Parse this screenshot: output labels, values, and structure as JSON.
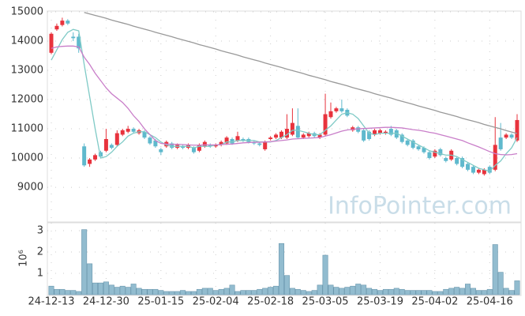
{
  "chart_data": [
    {
      "type": "candlestick",
      "categories": [
        "24-12-13",
        null,
        null,
        null,
        null,
        null,
        null,
        null,
        null,
        null,
        "24-12-30",
        null,
        null,
        null,
        null,
        null,
        null,
        null,
        null,
        null,
        "25-01-15",
        null,
        null,
        null,
        null,
        null,
        null,
        null,
        null,
        null,
        "25-02-04",
        null,
        null,
        null,
        null,
        null,
        null,
        null,
        null,
        null,
        "25-02-18",
        null,
        null,
        null,
        null,
        null,
        null,
        null,
        null,
        null,
        "25-03-05",
        null,
        null,
        null,
        null,
        null,
        null,
        null,
        null,
        null,
        "25-03-19",
        null,
        null,
        null,
        null,
        null,
        null,
        null,
        null,
        null,
        "25-04-02",
        null,
        null,
        null,
        null,
        null,
        null,
        null,
        null,
        null,
        "25-04-16",
        null,
        null,
        null,
        null,
        null
      ],
      "open": [
        13600,
        14400,
        14550,
        14700,
        14150,
        14150,
        10400,
        9800,
        9950,
        10200,
        10250,
        10450,
        10450,
        10800,
        10900,
        11000,
        10850,
        10900,
        10700,
        10600,
        10300,
        10400,
        10500,
        10350,
        10400,
        10350,
        10350,
        10250,
        10400,
        10450,
        10400,
        10450,
        10500,
        10650,
        10600,
        10650,
        10650,
        10550,
        10500,
        10300,
        10650,
        10700,
        10700,
        10700,
        10800,
        11100,
        10700,
        10750,
        10850,
        10700,
        10800,
        11400,
        11600,
        11700,
        11650,
        10950,
        11050,
        10950,
        10900,
        10800,
        10850,
        10850,
        11000,
        10950,
        10800,
        10600,
        10600,
        10400,
        10350,
        10200,
        10050,
        10300,
        10000,
        9950,
        10000,
        10000,
        9800,
        9700,
        9500,
        9450,
        9700,
        9600,
        10700,
        10700,
        10800,
        10600
      ],
      "high": [
        14300,
        14600,
        14800,
        14750,
        14300,
        14250,
        10500,
        10000,
        10150,
        10250,
        11000,
        10500,
        10950,
        11000,
        11100,
        11050,
        11000,
        10950,
        10750,
        10650,
        10350,
        10600,
        10550,
        10500,
        10450,
        10500,
        10400,
        10500,
        10600,
        10500,
        10500,
        10600,
        10750,
        10700,
        10900,
        10700,
        10700,
        10600,
        10550,
        10600,
        10750,
        10850,
        10950,
        11500,
        11700,
        11700,
        10850,
        10900,
        10900,
        10850,
        12200,
        11900,
        11750,
        12000,
        11700,
        11100,
        11100,
        11000,
        10950,
        11000,
        11000,
        10950,
        11100,
        11000,
        10850,
        10650,
        10650,
        10450,
        10400,
        10250,
        10300,
        10350,
        10050,
        10300,
        10050,
        10050,
        9850,
        9750,
        9650,
        9650,
        9750,
        11400,
        11200,
        10850,
        10850,
        11500
      ],
      "low": [
        13550,
        14350,
        14500,
        14550,
        14000,
        13600,
        9700,
        9700,
        9900,
        10000,
        10200,
        10300,
        10400,
        10750,
        10850,
        10850,
        10800,
        10650,
        10450,
        10350,
        10100,
        10350,
        10300,
        10300,
        10300,
        10300,
        10150,
        10200,
        10350,
        10350,
        10350,
        10400,
        10450,
        10450,
        10550,
        10550,
        10500,
        10450,
        10400,
        10250,
        10600,
        10650,
        10650,
        10650,
        10750,
        10650,
        10650,
        10700,
        10700,
        10650,
        10750,
        11350,
        11550,
        11550,
        11400,
        10900,
        10850,
        10550,
        10600,
        10750,
        10800,
        10800,
        10750,
        10650,
        10500,
        10400,
        10300,
        10250,
        10150,
        9950,
        10000,
        10050,
        9850,
        9900,
        9750,
        9650,
        9550,
        9450,
        9450,
        9400,
        9450,
        9550,
        10250,
        10650,
        10650,
        10550
      ],
      "close": [
        14250,
        14520,
        14700,
        14600,
        14100,
        13750,
        9750,
        9950,
        10100,
        10050,
        10650,
        10350,
        10850,
        10950,
        11000,
        10900,
        10950,
        10700,
        10500,
        10400,
        10200,
        10550,
        10350,
        10450,
        10350,
        10450,
        10200,
        10450,
        10550,
        10400,
        10450,
        10550,
        10700,
        10500,
        10750,
        10600,
        10550,
        10500,
        10450,
        10550,
        10700,
        10800,
        10900,
        11000,
        11200,
        10700,
        10800,
        10850,
        10750,
        10800,
        11500,
        11600,
        11700,
        11600,
        11450,
        11050,
        10900,
        10600,
        10650,
        10950,
        10950,
        10900,
        10800,
        10700,
        10550,
        10450,
        10350,
        10300,
        10200,
        10000,
        10250,
        10100,
        9900,
        10250,
        9800,
        9700,
        9600,
        9500,
        9600,
        9600,
        9500,
        10450,
        10300,
        10800,
        10700,
        11300
      ],
      "up_color": "#e8333d",
      "down_color": "#5fb9cd",
      "series": [
        {
          "color": "#7fcac6",
          "values": [
            13350,
            13700,
            14050,
            14300,
            14400,
            14350,
            13200,
            12100,
            11000,
            10000,
            10050,
            10200,
            10400,
            10550,
            10750,
            10850,
            10900,
            10900,
            10800,
            10700,
            10550,
            10450,
            10400,
            10400,
            10400,
            10400,
            10350,
            10400,
            10400,
            10400,
            10450,
            10450,
            10550,
            10550,
            10600,
            10600,
            10600,
            10600,
            10550,
            10550,
            10550,
            10600,
            10700,
            10800,
            10950,
            10950,
            10900,
            10850,
            10800,
            10800,
            10950,
            11100,
            11300,
            11500,
            11550,
            11500,
            11350,
            11100,
            10850,
            10800,
            10850,
            10850,
            10850,
            10850,
            10750,
            10650,
            10550,
            10450,
            10350,
            10250,
            10200,
            10150,
            10100,
            10100,
            10050,
            9950,
            9850,
            9750,
            9650,
            9600,
            9550,
            9750,
            9900,
            10150,
            10350,
            10700
          ]
        },
        {
          "color": "#c97ec9",
          "values": [
            13750,
            13800,
            13820,
            13830,
            13830,
            13800,
            13450,
            13200,
            12900,
            12650,
            12400,
            12200,
            12050,
            11900,
            11700,
            11450,
            11250,
            11000,
            10800,
            10600,
            10500,
            10480,
            10470,
            10470,
            10460,
            10450,
            10440,
            10440,
            10450,
            10450,
            10450,
            10460,
            10470,
            10480,
            10500,
            10520,
            10530,
            10540,
            10540,
            10550,
            10560,
            10580,
            10600,
            10620,
            10650,
            10660,
            10670,
            10680,
            10690,
            10700,
            10750,
            10800,
            10860,
            10920,
            10960,
            10980,
            11000,
            11010,
            11020,
            11030,
            11040,
            11050,
            11050,
            11040,
            11030,
            11000,
            10970,
            10950,
            10920,
            10880,
            10850,
            10800,
            10750,
            10700,
            10650,
            10600,
            10520,
            10450,
            10380,
            10300,
            10220,
            10150,
            10120,
            10110,
            10120,
            10150
          ]
        },
        {
          "color": "#999999",
          "values": [
            null,
            null,
            null,
            null,
            null,
            null,
            14980,
            14930,
            14880,
            14830,
            14780,
            14720,
            14670,
            14620,
            14570,
            14510,
            14460,
            14410,
            14360,
            14300,
            14250,
            14200,
            14150,
            14090,
            14040,
            13990,
            13940,
            13880,
            13830,
            13780,
            13730,
            13670,
            13620,
            13570,
            13520,
            13460,
            13410,
            13360,
            13310,
            13250,
            13200,
            13150,
            13100,
            13040,
            12990,
            12940,
            12890,
            12830,
            12780,
            12730,
            12680,
            12620,
            12570,
            12520,
            12470,
            12410,
            12360,
            12310,
            12260,
            12200,
            12150,
            12100,
            12050,
            11990,
            11940,
            11890,
            11840,
            11780,
            11730,
            11680,
            11630,
            11570,
            11520,
            11470,
            11420,
            11360,
            11310,
            11260,
            11210,
            11150,
            11100,
            11050,
            11000,
            10940,
            10890,
            10840
          ]
        }
      ],
      "ylim": [
        7840,
        15000
      ],
      "yticks": [
        9000,
        10000,
        11000,
        12000,
        13000,
        14000,
        15000
      ],
      "grid": true,
      "annotation": "InfoPointer.com"
    },
    {
      "type": "bar",
      "ylabel": "10⁶",
      "color": "#92bccf",
      "values": [
        0.4,
        0.25,
        0.25,
        0.2,
        0.2,
        0.15,
        3.05,
        1.45,
        0.55,
        0.55,
        0.6,
        0.45,
        0.35,
        0.4,
        0.35,
        0.5,
        0.3,
        0.25,
        0.25,
        0.25,
        0.2,
        0.15,
        0.15,
        0.15,
        0.2,
        0.15,
        0.15,
        0.25,
        0.3,
        0.3,
        0.2,
        0.25,
        0.3,
        0.45,
        0.15,
        0.2,
        0.2,
        0.2,
        0.25,
        0.3,
        0.35,
        0.4,
        2.4,
        0.9,
        0.3,
        0.25,
        0.2,
        0.15,
        0.2,
        0.45,
        1.85,
        0.45,
        0.35,
        0.3,
        0.35,
        0.4,
        0.5,
        0.45,
        0.3,
        0.25,
        0.2,
        0.25,
        0.25,
        0.3,
        0.25,
        0.2,
        0.2,
        0.2,
        0.2,
        0.2,
        0.15,
        0.15,
        0.25,
        0.3,
        0.35,
        0.3,
        0.5,
        0.3,
        0.2,
        0.2,
        0.25,
        2.35,
        1.05,
        0.3,
        0.2,
        0.65
      ],
      "ylim": [
        0,
        3.37
      ],
      "yticks": [
        1,
        2,
        3
      ],
      "grid": true
    }
  ]
}
